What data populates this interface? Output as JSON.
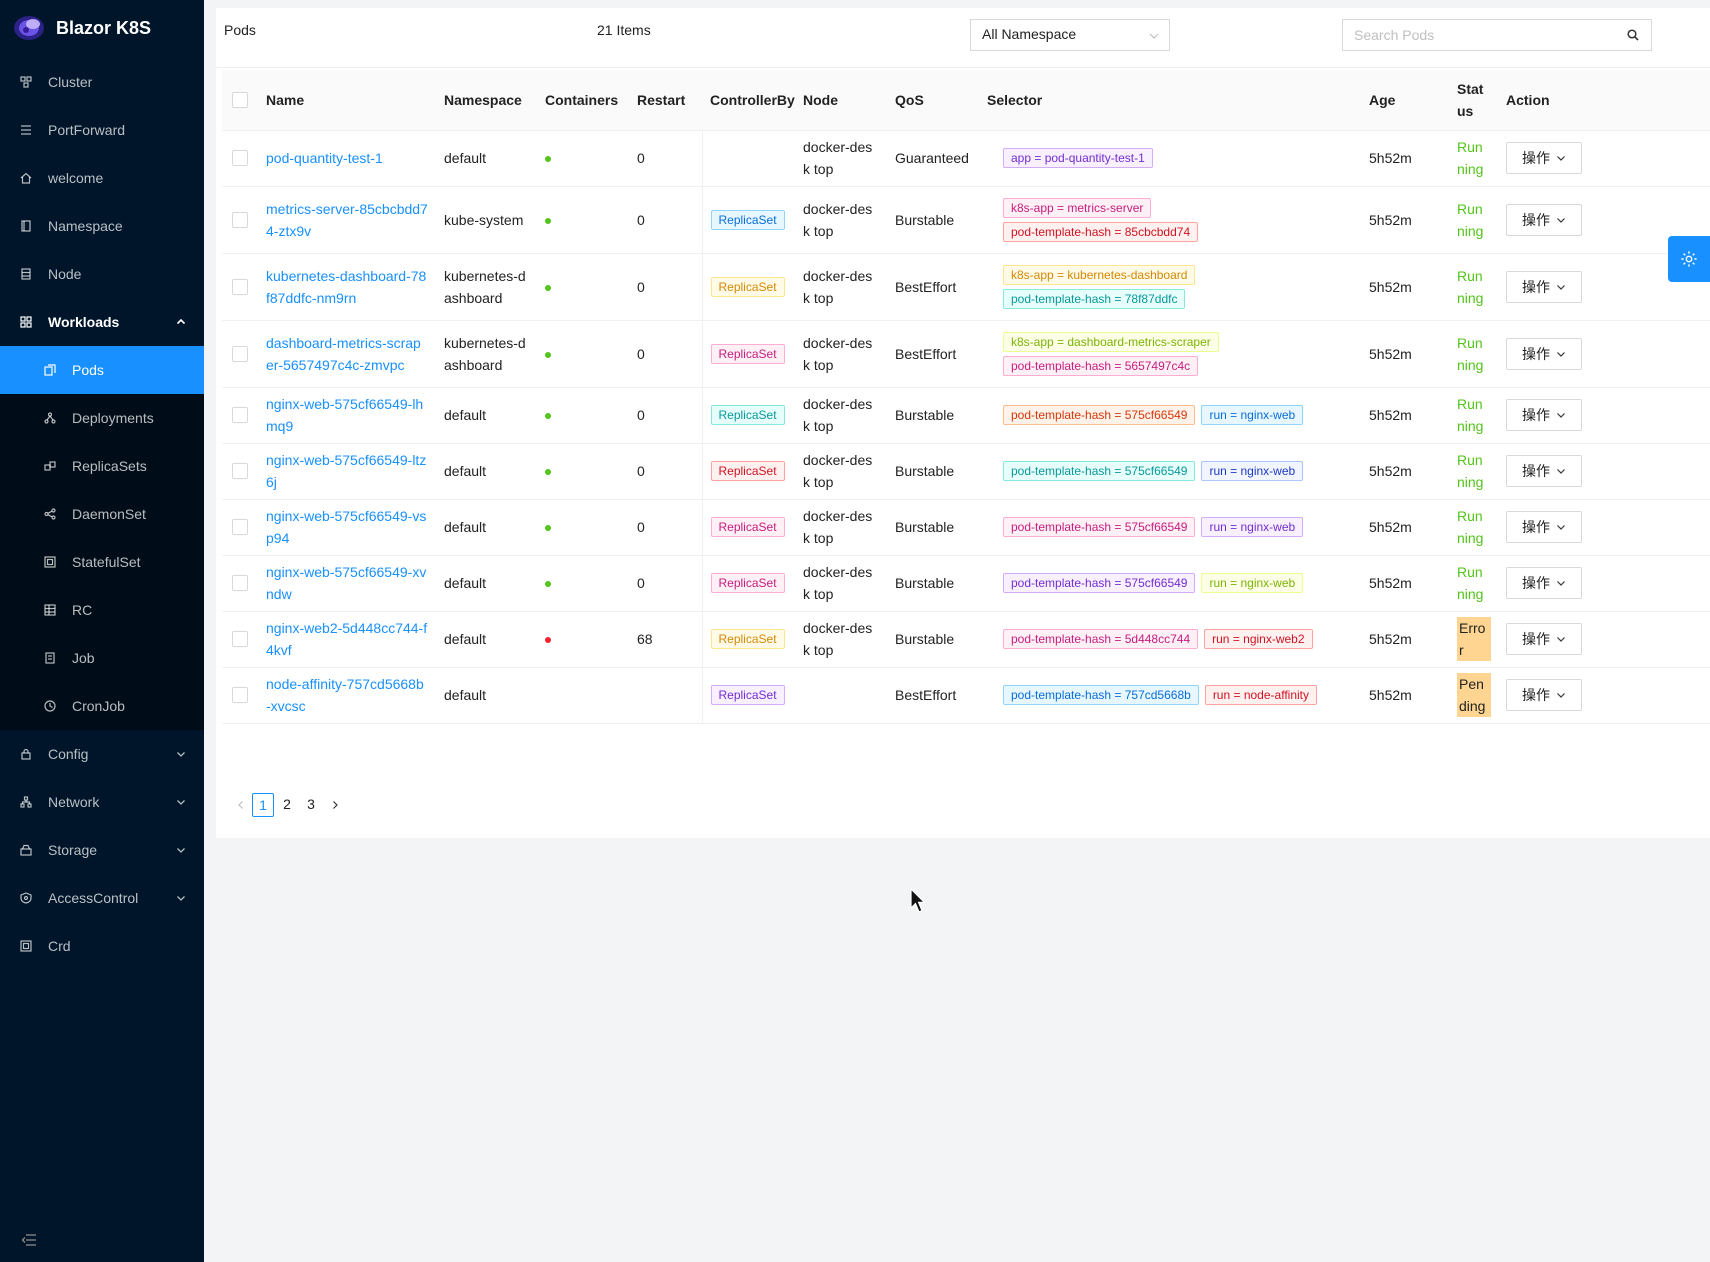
{
  "app": {
    "title": "Blazor K8S"
  },
  "sidebar": {
    "items": [
      {
        "label": "Cluster",
        "icon": "cluster-icon"
      },
      {
        "label": "PortForward",
        "icon": "list-icon"
      },
      {
        "label": "welcome",
        "icon": "home-icon"
      },
      {
        "label": "Namespace",
        "icon": "book-icon"
      },
      {
        "label": "Node",
        "icon": "server-icon"
      },
      {
        "label": "Workloads",
        "icon": "grid-icon",
        "expanded": true,
        "children": [
          {
            "label": "Pods",
            "icon": "copy-icon",
            "active": true
          },
          {
            "label": "Deployments",
            "icon": "deploy-icon"
          },
          {
            "label": "ReplicaSets",
            "icon": "replica-icon"
          },
          {
            "label": "DaemonSet",
            "icon": "share-icon"
          },
          {
            "label": "StatefulSet",
            "icon": "window-icon"
          },
          {
            "label": "RC",
            "icon": "table-icon"
          },
          {
            "label": "Job",
            "icon": "doc-icon"
          },
          {
            "label": "CronJob",
            "icon": "clock-icon"
          }
        ]
      },
      {
        "label": "Config",
        "icon": "lock-icon"
      },
      {
        "label": "Network",
        "icon": "network-icon"
      },
      {
        "label": "Storage",
        "icon": "storage-icon"
      },
      {
        "label": "AccessControl",
        "icon": "shield-icon"
      },
      {
        "label": "Crd",
        "icon": "crd-icon"
      }
    ]
  },
  "header": {
    "title": "Pods",
    "count": "21 Items",
    "namespace_select": "All Namespace",
    "search_placeholder": "Search Pods"
  },
  "table": {
    "columns": {
      "name": "Name",
      "namespace": "Namespace",
      "containers": "Containers",
      "restart": "Restart",
      "controller": "ControllerBy",
      "node": "Node",
      "qos": "QoS",
      "selector": "Selector",
      "age": "Age",
      "status": "Stat us",
      "action": "Action"
    },
    "action_label": "操作",
    "rows": [
      {
        "name": "pod-quantity-test-1",
        "namespace": "default",
        "dot": "green",
        "restart": "0",
        "controller": "",
        "node": "docker-desk top",
        "qos": "Guaranteed",
        "selectors": [
          {
            "text": "app = pod-quantity-test-1",
            "color": "purple"
          }
        ],
        "age": "5h52m",
        "status": "Run ning",
        "status_type": "run"
      },
      {
        "name": "metrics-server-85cbcbdd74-ztx9v",
        "namespace": "kube-system",
        "dot": "green",
        "restart": "0",
        "controller": "ReplicaSet",
        "controller_color": "blue",
        "node": "docker-desk top",
        "qos": "Burstable",
        "selectors": [
          {
            "text": "k8s-app = metrics-server",
            "color": "magenta"
          },
          {
            "text": "pod-template-hash = 85cbcbdd74",
            "color": "red"
          }
        ],
        "age": "5h52m",
        "status": "Run ning",
        "status_type": "run"
      },
      {
        "name": "kubernetes-dashboard-78f87ddfc-nm9rn",
        "namespace": "kubernetes-d ashboard",
        "dot": "green",
        "restart": "0",
        "controller": "ReplicaSet",
        "controller_color": "gold",
        "node": "docker-desk top",
        "qos": "BestEffort",
        "selectors": [
          {
            "text": "k8s-app = kubernetes-dashboard",
            "color": "gold"
          },
          {
            "text": "pod-template-hash = 78f87ddfc",
            "color": "cyan"
          }
        ],
        "age": "5h52m",
        "status": "Run ning",
        "status_type": "run"
      },
      {
        "name": "dashboard-metrics-scraper-5657497c4c-zmvpc",
        "namespace": "kubernetes-d ashboard",
        "dot": "green",
        "restart": "0",
        "controller": "ReplicaSet",
        "controller_color": "magenta",
        "node": "docker-desk top",
        "qos": "BestEffort",
        "selectors": [
          {
            "text": "k8s-app = dashboard-metrics-scraper",
            "color": "lime"
          },
          {
            "text": "pod-template-hash = 5657497c4c",
            "color": "magenta"
          }
        ],
        "age": "5h52m",
        "status": "Run ning",
        "status_type": "run"
      },
      {
        "name": "nginx-web-575cf66549-lhmq9",
        "namespace": "default",
        "dot": "green",
        "restart": "0",
        "controller": "ReplicaSet",
        "controller_color": "cyan",
        "node": "docker-desk top",
        "qos": "Burstable",
        "selectors": [
          {
            "text": "pod-template-hash = 575cf66549",
            "color": "volcano"
          },
          {
            "text": "run = nginx-web",
            "color": "blue"
          }
        ],
        "age": "5h52m",
        "status": "Run ning",
        "status_type": "run"
      },
      {
        "name": "nginx-web-575cf66549-ltz6j",
        "namespace": "default",
        "dot": "green",
        "restart": "0",
        "controller": "ReplicaSet",
        "controller_color": "red",
        "node": "docker-desk top",
        "qos": "Burstable",
        "selectors": [
          {
            "text": "pod-template-hash = 575cf66549",
            "color": "cyan"
          },
          {
            "text": "run = nginx-web",
            "color": "geekblue"
          }
        ],
        "age": "5h52m",
        "status": "Run ning",
        "status_type": "run"
      },
      {
        "name": "nginx-web-575cf66549-vsp94",
        "namespace": "default",
        "dot": "green",
        "restart": "0",
        "controller": "ReplicaSet",
        "controller_color": "magenta",
        "node": "docker-desk top",
        "qos": "Burstable",
        "selectors": [
          {
            "text": "pod-template-hash = 575cf66549",
            "color": "magenta"
          },
          {
            "text": "run = nginx-web",
            "color": "purple"
          }
        ],
        "age": "5h52m",
        "status": "Run ning",
        "status_type": "run"
      },
      {
        "name": "nginx-web-575cf66549-xvndw",
        "namespace": "default",
        "dot": "green",
        "restart": "0",
        "controller": "ReplicaSet",
        "controller_color": "magenta",
        "node": "docker-desk top",
        "qos": "Burstable",
        "selectors": [
          {
            "text": "pod-template-hash = 575cf66549",
            "color": "purple"
          },
          {
            "text": "run = nginx-web",
            "color": "lime"
          }
        ],
        "age": "5h52m",
        "status": "Run ning",
        "status_type": "run"
      },
      {
        "name": "nginx-web2-5d448cc744-f4kvf",
        "namespace": "default",
        "dot": "red",
        "restart": "68",
        "controller": "ReplicaSet",
        "controller_color": "gold",
        "node": "docker-desk top",
        "qos": "Burstable",
        "selectors": [
          {
            "text": "pod-template-hash = 5d448cc744",
            "color": "magenta"
          },
          {
            "text": "run = nginx-web2",
            "color": "red"
          }
        ],
        "age": "5h52m",
        "status": "Error",
        "status_type": "error"
      },
      {
        "name": "node-affinity-757cd5668b-xvcsc",
        "namespace": "default",
        "dot": "",
        "restart": "",
        "controller": "ReplicaSet",
        "controller_color": "purple",
        "node": "",
        "qos": "BestEffort",
        "selectors": [
          {
            "text": "pod-template-hash = 757cd5668b",
            "color": "blue"
          },
          {
            "text": "run = node-affinity",
            "color": "red"
          }
        ],
        "age": "5h52m",
        "status": "Pen ding",
        "status_type": "pending"
      }
    ]
  },
  "pagination": {
    "pages": [
      "1",
      "2",
      "3"
    ],
    "current": "1"
  },
  "colors": {
    "sidebar_bg": "#001529",
    "primary": "#1890ff",
    "running": "#52c41a",
    "error_dot": "#f5222d",
    "status_highlight": "#ffd591"
  }
}
